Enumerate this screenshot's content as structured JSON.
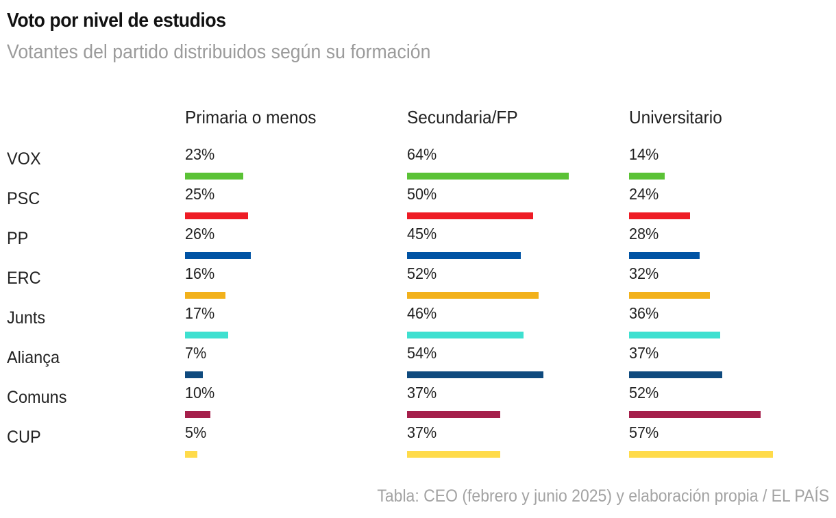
{
  "chart_data": {
    "type": "bar",
    "title": "Voto por nivel de estudios",
    "subtitle": "Votantes del partido distribuidos según su formación",
    "categories": [
      "VOX",
      "PSC",
      "PP",
      "ERC",
      "Junts",
      "Aliança",
      "Comuns",
      "CUP"
    ],
    "colors": [
      "#5bc236",
      "#ee1c25",
      "#0053a4",
      "#f2b11b",
      "#3fe0d0",
      "#0f4a7e",
      "#a51f4b",
      "#ffdb4a"
    ],
    "series": [
      {
        "name": "Primaria o menos",
        "values": [
          23,
          25,
          26,
          16,
          17,
          7,
          10,
          5
        ]
      },
      {
        "name": "Secundaria/FP",
        "values": [
          64,
          50,
          45,
          52,
          46,
          54,
          37,
          37
        ]
      },
      {
        "name": "Universitario",
        "values": [
          14,
          24,
          28,
          32,
          36,
          37,
          52,
          57
        ]
      }
    ],
    "value_suffix": "%",
    "xlim": [
      0,
      100
    ],
    "orientation": "horizontal",
    "grid": false,
    "legend": "none",
    "source": "Tabla: CEO (febrero y junio 2025) y elaboración propia / EL PAÍS"
  }
}
